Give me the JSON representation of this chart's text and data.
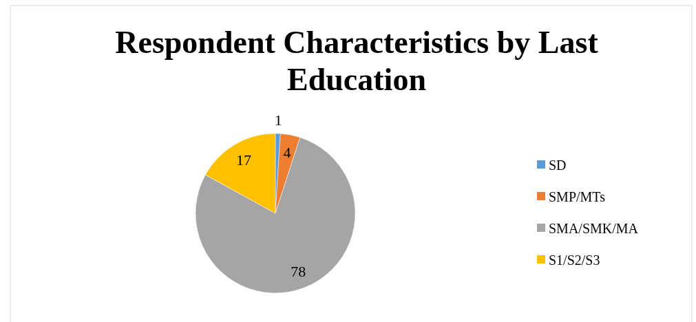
{
  "chart_data": {
    "type": "pie",
    "title": "Respondent Characteristics by Last Education",
    "categories": [
      "SD",
      "SMP/MTs",
      "SMA/SMK/MA",
      "S1/S2/S3"
    ],
    "values": [
      1,
      4,
      78,
      17
    ],
    "colors": [
      "#5b9bd5",
      "#ed7d31",
      "#a5a5a5",
      "#ffc000"
    ],
    "data_labels": true,
    "legend": "right"
  }
}
